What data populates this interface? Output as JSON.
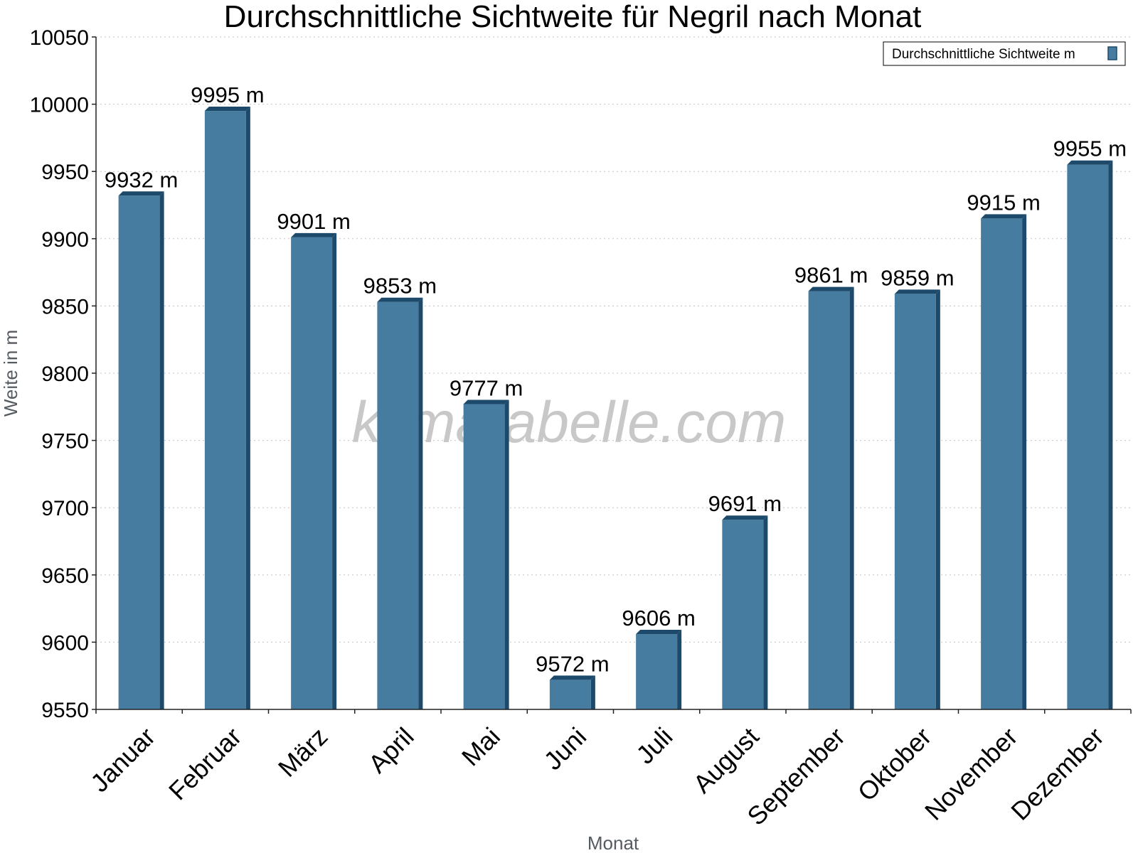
{
  "chart_data": {
    "type": "bar",
    "title": "Durchschnittliche Sichtweite für Negril nach Monat",
    "xlabel": "Monat",
    "ylabel": "Weite in m",
    "ylim": [
      9550,
      10050
    ],
    "yticks": [
      9550,
      9600,
      9650,
      9700,
      9750,
      9800,
      9850,
      9900,
      9950,
      10000,
      10050
    ],
    "grid": true,
    "legend_position": "top-right",
    "categories": [
      "Januar",
      "Februar",
      "März",
      "April",
      "Mai",
      "Juni",
      "Juli",
      "August",
      "September",
      "Oktober",
      "November",
      "Dezember"
    ],
    "series": [
      {
        "name": "Durchschnittliche Sichtweite m",
        "values": [
          9932,
          9995,
          9901,
          9853,
          9777,
          9572,
          9606,
          9691,
          9861,
          9859,
          9915,
          9955
        ],
        "labels": [
          "9932 m",
          "9995 m",
          "9901 m",
          "9853 m",
          "9777 m",
          "9572 m",
          "9606 m",
          "9691 m",
          "9861 m",
          "9859 m",
          "9915 m",
          "9955 m"
        ],
        "color": "#467c9f",
        "side_color": "#1d4a6b"
      }
    ]
  },
  "watermark": "klimatabelle.com"
}
